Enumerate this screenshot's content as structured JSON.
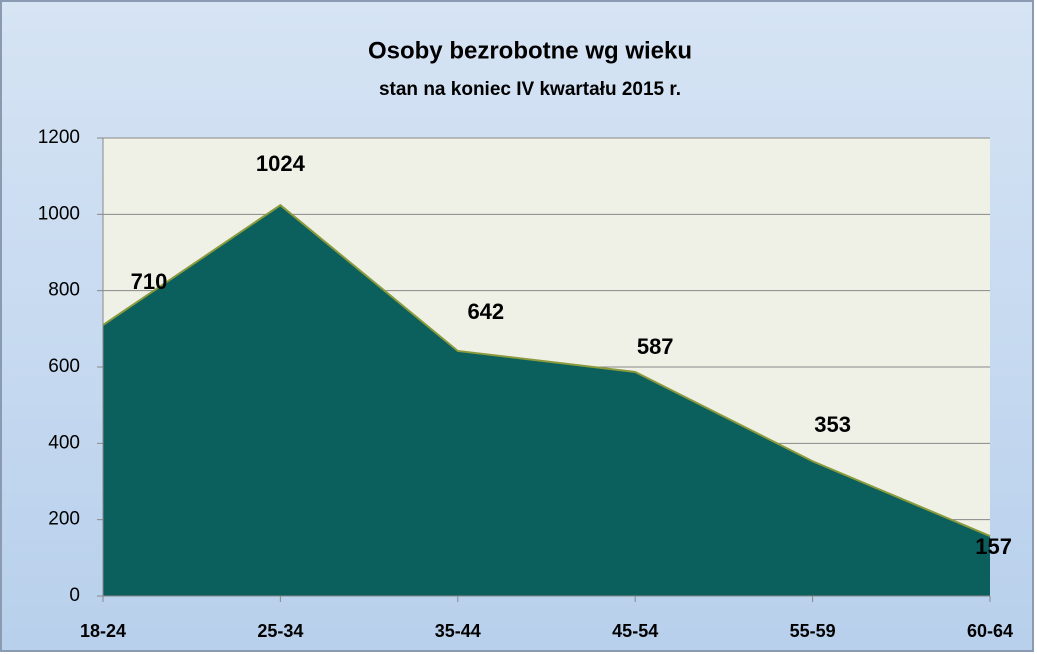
{
  "chart_data": {
    "type": "area",
    "title": "Osoby bezrobotne wg wieku",
    "subtitle": "stan na koniec IV kwartału 2015 r.",
    "categories": [
      "18-24",
      "25-34",
      "35-44",
      "45-54",
      "55-59",
      "60-64"
    ],
    "values": [
      710,
      1024,
      642,
      587,
      353,
      157
    ],
    "color": "#0b5f5c",
    "line_color": "#8a9a3c",
    "ylim": [
      0,
      1200
    ],
    "yticks": [
      0,
      200,
      400,
      600,
      800,
      1000,
      1200
    ],
    "grid": true
  }
}
